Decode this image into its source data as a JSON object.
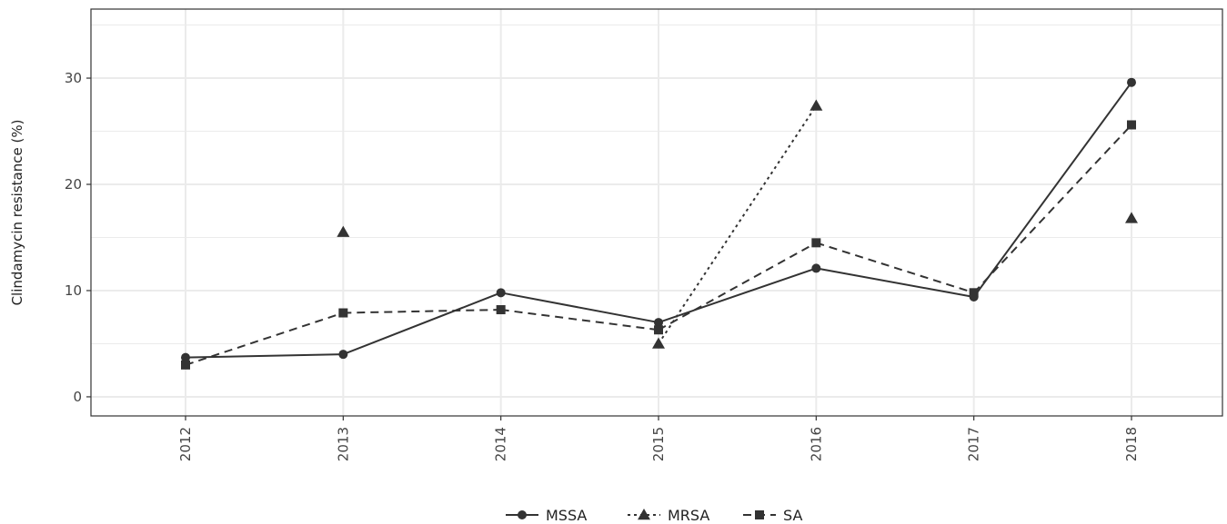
{
  "chart_data": {
    "type": "line",
    "title": "",
    "xlabel": "",
    "ylabel": "Clindamycin resistance (%)",
    "categories": [
      "2012",
      "2013",
      "2014",
      "2015",
      "2016",
      "2017",
      "2018"
    ],
    "ylim": [
      -1.8,
      36.5
    ],
    "yticks": [
      0,
      10,
      20,
      30
    ],
    "grid": true,
    "legend_position": "bottom",
    "series": [
      {
        "name": "MSSA",
        "marker": "circle",
        "line_style": "solid",
        "values": [
          3.7,
          4.0,
          9.8,
          7.0,
          12.1,
          9.4,
          29.6
        ]
      },
      {
        "name": "MRSA",
        "marker": "triangle",
        "line_style": "dotted",
        "values": [
          null,
          15.5,
          null,
          5.0,
          27.4,
          null,
          16.8
        ]
      },
      {
        "name": "SA",
        "marker": "square",
        "line_style": "dashed",
        "values": [
          3.0,
          7.9,
          8.2,
          6.3,
          14.5,
          9.8,
          25.6
        ]
      }
    ],
    "colors": {
      "series": "#333333",
      "grid": "#ebebeb",
      "panel_border": "#333333"
    }
  }
}
